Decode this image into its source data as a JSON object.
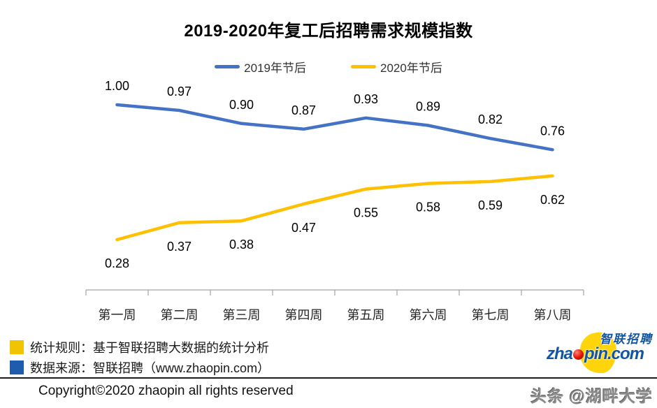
{
  "title": "2019-2020年复工后招聘需求规模指数",
  "chart_data": {
    "type": "line",
    "title": "2019-2020年复工后招聘需求规模指数",
    "categories": [
      "第一周",
      "第二周",
      "第三周",
      "第四周",
      "第五周",
      "第六周",
      "第七周",
      "第八周"
    ],
    "series": [
      {
        "name": "2019年节后",
        "color": "#4472C4",
        "label_position": "above",
        "values": [
          1.0,
          0.97,
          0.9,
          0.87,
          0.93,
          0.89,
          0.82,
          0.76
        ]
      },
      {
        "name": "2020年节后",
        "color": "#FFC000",
        "label_position": "below",
        "values": [
          0.28,
          0.37,
          0.38,
          0.47,
          0.55,
          0.58,
          0.59,
          0.62
        ]
      }
    ],
    "xlabel": "",
    "ylabel": "",
    "ylim": [
      0,
      1.05
    ],
    "grid": false,
    "legend_position": "top",
    "value_label_format": "0.00"
  },
  "footer": {
    "notes": [
      {
        "swatch_color": "#F0C400",
        "text": "统计规则：基于智联招聘大数据的统计分析"
      },
      {
        "swatch_color": "#1F5CAD",
        "text": "数据来源：智联招聘（www.zhaopin.com）"
      }
    ],
    "copyright": "Copyright©2020 zhaopin all rights reserved",
    "watermark": "头条 @湖畔大学"
  },
  "logo": {
    "brand_cn": "智联招聘",
    "domain_pre": "zha",
    "domain_post": "pin.com",
    "blue": "#1156A5",
    "yellow": "#FFD40A",
    "dot_red": "#D01000"
  }
}
